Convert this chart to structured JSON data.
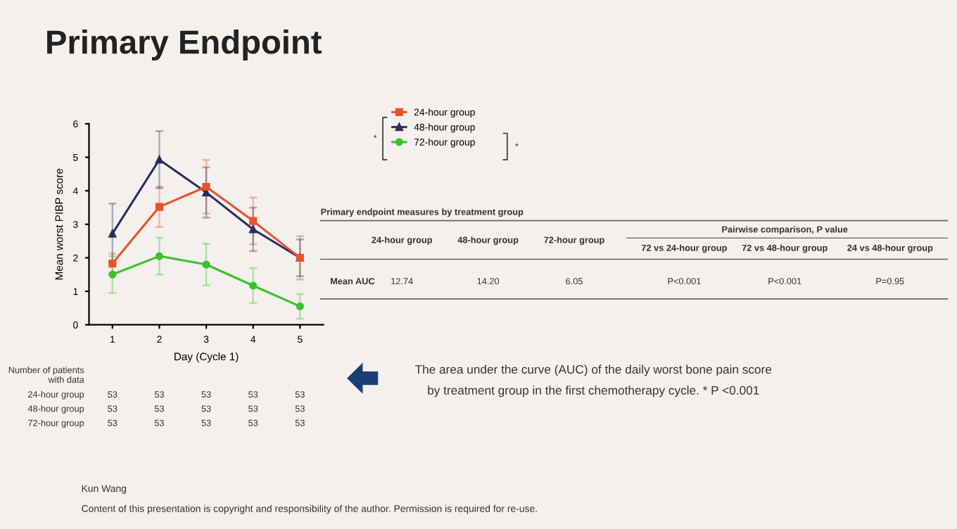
{
  "chart_data": {
    "type": "line",
    "title": "Primary Endpoint",
    "xlabel": "Day (Cycle 1)",
    "ylabel": "Mean worst PIBP score",
    "categories": [
      "1",
      "2",
      "3",
      "4",
      "5"
    ],
    "ylim": [
      0,
      6
    ],
    "yticks": [
      0,
      1,
      2,
      3,
      4,
      5,
      6
    ],
    "grid": false,
    "legend": "top right",
    "series": [
      {
        "name": "24-hour group",
        "color": "#e8532b",
        "marker": "square",
        "values": [
          1.83,
          3.52,
          4.12,
          3.1,
          2.0
        ],
        "errors": [
          0.3,
          0.6,
          0.8,
          0.7,
          0.65
        ]
      },
      {
        "name": "48-hour group",
        "color": "#2b2d5c",
        "marker": "triangle",
        "values": [
          2.72,
          4.93,
          3.95,
          2.85,
          2.0
        ],
        "errors": [
          0.9,
          0.85,
          0.75,
          0.65,
          0.55
        ]
      },
      {
        "name": "72-hour group",
        "color": "#3cc22a",
        "marker": "circle",
        "values": [
          1.5,
          2.05,
          1.8,
          1.17,
          0.55
        ],
        "errors": [
          0.55,
          0.55,
          0.62,
          0.52,
          0.37
        ]
      }
    ],
    "annotations": [
      "*",
      "*",
      "Number of patients\nwith data",
      "24-hour group",
      "53",
      "53",
      "53",
      "53",
      "53",
      "48-hour group",
      "53",
      "53",
      "53",
      "53",
      "53",
      "72-hour group",
      "53",
      "53",
      "53",
      "53",
      "53",
      "Primary endpoint measures by treatment group",
      "24-hour group",
      "48-hour group",
      "72-hour group",
      "Pairwise comparison, P value",
      "72 vs 24-hour group",
      "72 vs 48-hour group",
      "24 vs 48-hour group",
      "Mean AUC",
      "12.74",
      "14.20",
      "6.05",
      "P<0.001",
      "P<0.001",
      "P=0.95",
      "The area under the curve (AUC) of the daily worst bone pain score\nby treatment group in the first chemotherapy cycle. * P <0.001",
      "Kun Wang",
      "Content of this presentation is copyright and responsibility of the author. Permission is required for re-use."
    ]
  }
}
